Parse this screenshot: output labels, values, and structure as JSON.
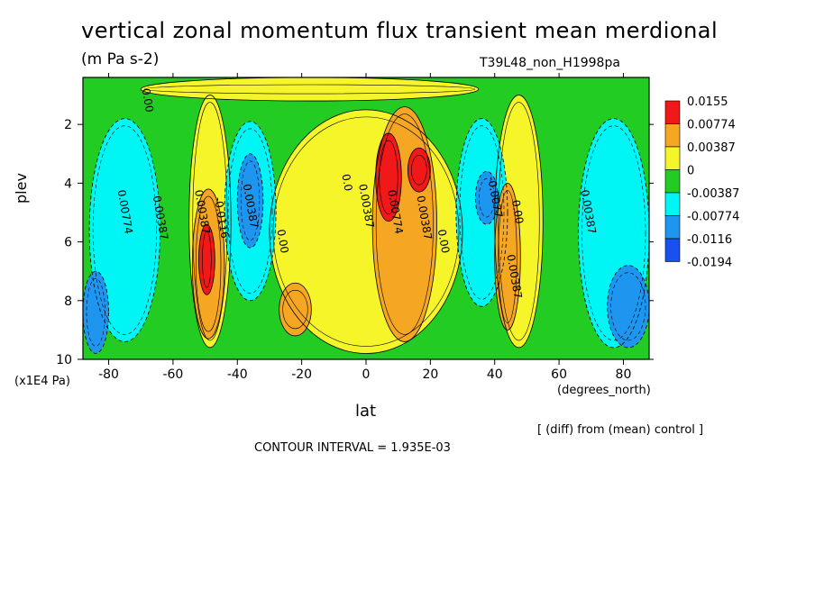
{
  "header": {
    "title": "vertical zonal momentum flux transient mean merdional",
    "units": "(m Pa s-2)",
    "run_label": "T39L48_non_H1998pa"
  },
  "footer": {
    "diff_note": "[ (diff) from (mean) control ]",
    "contour_interval": "CONTOUR INTERVAL = 1.935E-03"
  },
  "chart_data": {
    "type": "heatmap",
    "xlabel": "lat",
    "x_unit": "(degrees_north)",
    "ylabel": "plev",
    "y_unit": "(x1E4 Pa)",
    "xlim": [
      -88,
      88
    ],
    "ylim": [
      10,
      0.4
    ],
    "x_ticks": [
      -80,
      -60,
      -40,
      -20,
      0,
      20,
      40,
      60,
      80
    ],
    "y_ticks": [
      2,
      4,
      6,
      8,
      10
    ],
    "legend": {
      "placement": "right",
      "labels": [
        "0.0155",
        "0.00774",
        "0.00387",
        "0",
        "-0.00387",
        "-0.00774",
        "-0.0116",
        "-0.0194"
      ],
      "colors": [
        "#f01818",
        "#f5a623",
        "#f5f52a",
        "#22cc22",
        "#00f5f5",
        "#1e96f0",
        "#1a4ff0"
      ]
    },
    "contour_labels": [
      {
        "text": "0.00",
        "x": -69,
        "y": 1.2
      },
      {
        "text": "0.00774",
        "x": -76,
        "y": 5.0
      },
      {
        "text": "0.00387",
        "x": -65,
        "y": 5.2
      },
      {
        "text": "0.00387",
        "x": -52,
        "y": 5.0
      },
      {
        "text": "-0.0116",
        "x": -46,
        "y": 5.2
      },
      {
        "text": "0.00387",
        "x": -37,
        "y": 4.8
      },
      {
        "text": "0.00",
        "x": -27,
        "y": 6.0
      },
      {
        "text": "0.0",
        "x": -7,
        "y": 4.0
      },
      {
        "text": "0.00387",
        "x": -1,
        "y": 4.8
      },
      {
        "text": "0.00774",
        "x": 8,
        "y": 5.0
      },
      {
        "text": "0.00387",
        "x": 17,
        "y": 5.2
      },
      {
        "text": "0.00",
        "x": 23,
        "y": 6.0
      },
      {
        "text": "-0.0077",
        "x": 39,
        "y": 4.5
      },
      {
        "text": "0.00",
        "x": 46,
        "y": 5.0
      },
      {
        "text": "0.00387",
        "x": 45,
        "y": 7.2
      },
      {
        "text": "0.00387",
        "x": 68,
        "y": 5.0
      }
    ],
    "regions": [
      {
        "name": "green-base",
        "lat_min": -88,
        "lat_max": 88,
        "plev_min": 0.4,
        "plev_max": 10,
        "value": -0.002
      },
      {
        "name": "yellow-top-band",
        "lat_min": -70,
        "lat_max": 35,
        "plev_min": 0.4,
        "plev_max": 1.2,
        "value": 0.002
      },
      {
        "name": "yellow-midleft",
        "lat_min": -55,
        "lat_max": -42,
        "plev_min": 1.0,
        "plev_max": 9.6,
        "value": 0.002
      },
      {
        "name": "yellow-center",
        "lat_min": -30,
        "lat_max": 30,
        "plev_min": 1.5,
        "plev_max": 9.8,
        "value": 0.002
      },
      {
        "name": "yellow-right",
        "lat_min": 40,
        "lat_max": 55,
        "plev_min": 1.0,
        "plev_max": 9.6,
        "value": 0.002
      },
      {
        "name": "cyan-left",
        "lat_min": -86,
        "lat_max": -64,
        "plev_min": 1.8,
        "plev_max": 9.4,
        "value": -0.005
      },
      {
        "name": "cyan-mid",
        "lat_min": -44,
        "lat_max": -28,
        "plev_min": 1.9,
        "plev_max": 8.0,
        "value": -0.005
      },
      {
        "name": "cyan-right",
        "lat_min": 28,
        "lat_max": 44,
        "plev_min": 1.8,
        "plev_max": 8.2,
        "value": -0.005
      },
      {
        "name": "cyan-far-right",
        "lat_min": 66,
        "lat_max": 88,
        "plev_min": 1.8,
        "plev_max": 9.6,
        "value": -0.005
      },
      {
        "name": "blue-left",
        "lat_min": -88,
        "lat_max": -80,
        "plev_min": 7.0,
        "plev_max": 9.8,
        "value": -0.01
      },
      {
        "name": "blue-mid",
        "lat_min": -40,
        "lat_max": -32,
        "plev_min": 3.0,
        "plev_max": 6.2,
        "value": -0.01
      },
      {
        "name": "blue-right",
        "lat_min": 34,
        "lat_max": 41,
        "plev_min": 3.6,
        "plev_max": 5.4,
        "value": -0.01
      },
      {
        "name": "blue-far-right",
        "lat_min": 75,
        "lat_max": 88,
        "plev_min": 6.8,
        "plev_max": 9.6,
        "value": -0.01
      },
      {
        "name": "orange-left",
        "lat_min": -54,
        "lat_max": -44,
        "plev_min": 4.2,
        "plev_max": 9.3,
        "value": 0.005
      },
      {
        "name": "orange-center",
        "lat_min": 2,
        "lat_max": 22,
        "plev_min": 1.4,
        "plev_max": 9.4,
        "value": 0.005
      },
      {
        "name": "orange-right",
        "lat_min": 40,
        "lat_max": 48,
        "plev_min": 4.0,
        "plev_max": 9.0,
        "value": 0.005
      },
      {
        "name": "orange-low",
        "lat_min": -27,
        "lat_max": -17,
        "plev_min": 7.4,
        "plev_max": 9.2,
        "value": 0.005
      },
      {
        "name": "red-left",
        "lat_min": -52,
        "lat_max": -47,
        "plev_min": 5.4,
        "plev_max": 7.8,
        "value": 0.011
      },
      {
        "name": "red-center",
        "lat_min": 3,
        "lat_max": 11,
        "plev_min": 2.3,
        "plev_max": 5.3,
        "value": 0.011
      },
      {
        "name": "red-center-2",
        "lat_min": 13,
        "lat_max": 20,
        "plev_min": 2.8,
        "plev_max": 4.3,
        "value": 0.011
      }
    ]
  }
}
